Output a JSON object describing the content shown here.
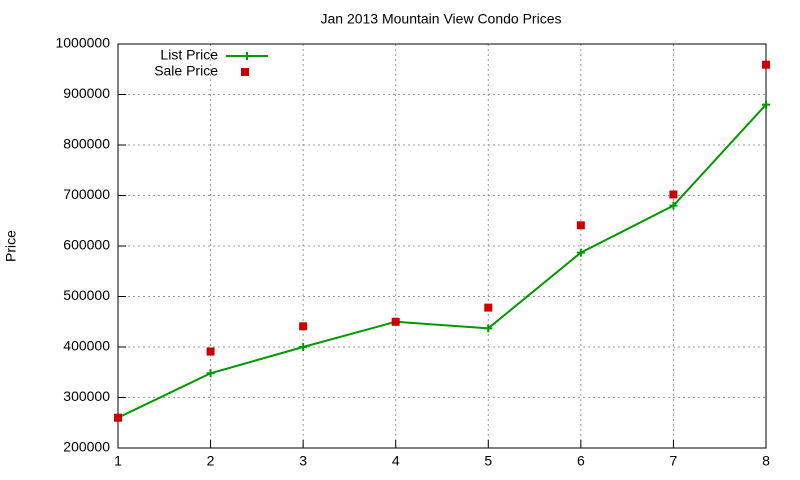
{
  "chart_data": {
    "type": "line",
    "title": "Jan 2013 Mountain View Condo Prices",
    "y_label": "Price",
    "x": [
      1,
      2,
      3,
      4,
      5,
      6,
      7,
      8
    ],
    "xlim": [
      1,
      8
    ],
    "xticks": [
      1,
      2,
      3,
      4,
      5,
      6,
      7,
      8
    ],
    "ylim": [
      200000,
      1000000
    ],
    "yticks": [
      200000,
      300000,
      400000,
      500000,
      600000,
      700000,
      800000,
      900000,
      1000000
    ],
    "grid": true,
    "legend": "top-left",
    "series": [
      {
        "name": "List Price",
        "color": "#009900",
        "style": "linespoints",
        "values": [
          260000,
          348000,
          400000,
          450000,
          437000,
          587000,
          680000,
          880000
        ]
      },
      {
        "name": "Sale Price",
        "color": "#cc0000",
        "style": "points",
        "values": [
          260000,
          391000,
          441000,
          450000,
          478000,
          641000,
          702000,
          959000
        ]
      }
    ]
  }
}
